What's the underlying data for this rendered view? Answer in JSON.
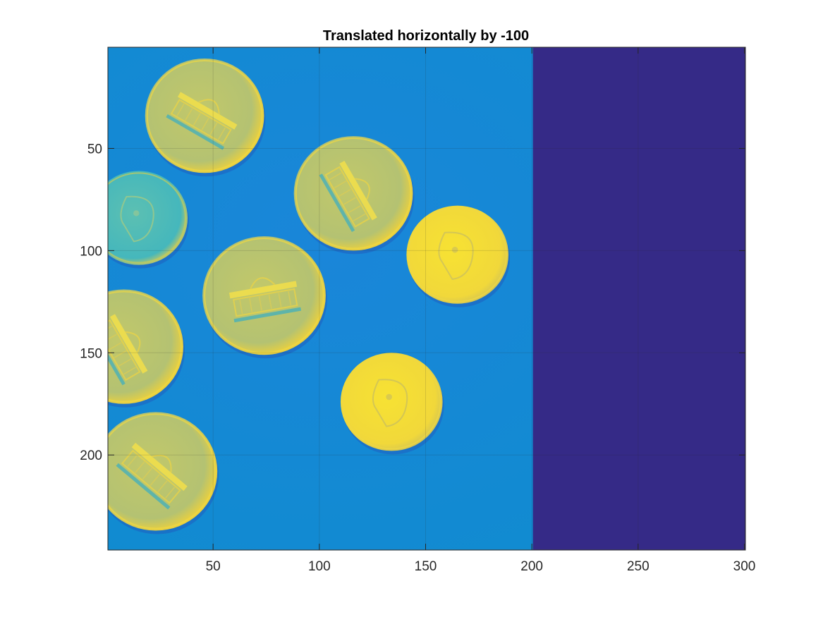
{
  "figure": {
    "title": "Translated horizontally by -100"
  },
  "chart_data": {
    "type": "heatmap",
    "title": "Translated horizontally by -100",
    "xlabel": "",
    "ylabel": "",
    "xlim": [
      0.5,
      300.5
    ],
    "ylim": [
      0.5,
      246.5
    ],
    "y_direction": "reversed",
    "grid": true,
    "x_ticks": [
      50,
      100,
      150,
      200,
      250,
      300
    ],
    "y_ticks": [
      50,
      100,
      150,
      200
    ],
    "x_tick_labels": [
      "50",
      "100",
      "150",
      "200",
      "250",
      "300"
    ],
    "y_tick_labels": [
      "50",
      "100",
      "150",
      "200"
    ],
    "colormap": "parula",
    "colors": {
      "background": "#1882d6",
      "fill_region": "#352a87",
      "coin_edge": "#e0c94a",
      "coin_face": "#bfc46a",
      "coin_bright": "#f8e838",
      "dime_face": "#56c2b8"
    },
    "fill_region_x": [
      200.5,
      300.5
    ],
    "objects": [
      {
        "kind": "nickel",
        "cx": 46,
        "cy": 34,
        "r": 28,
        "rotation": 30
      },
      {
        "kind": "nickel",
        "cx": 116,
        "cy": 72,
        "r": 28,
        "rotation": 60
      },
      {
        "kind": "dime",
        "cx": 15,
        "cy": 84,
        "r": 23,
        "rotation": 0
      },
      {
        "kind": "penny",
        "cx": 165,
        "cy": 102,
        "r": 24,
        "rotation": 0
      },
      {
        "kind": "nickel",
        "cx": 74,
        "cy": 122,
        "r": 29,
        "rotation": -10
      },
      {
        "kind": "nickel",
        "cx": 8,
        "cy": 147,
        "r": 28,
        "rotation": 60
      },
      {
        "kind": "penny",
        "cx": 134,
        "cy": 174,
        "r": 24,
        "rotation": 0
      },
      {
        "kind": "nickel",
        "cx": 23,
        "cy": 208,
        "r": 29,
        "rotation": 40
      }
    ]
  }
}
